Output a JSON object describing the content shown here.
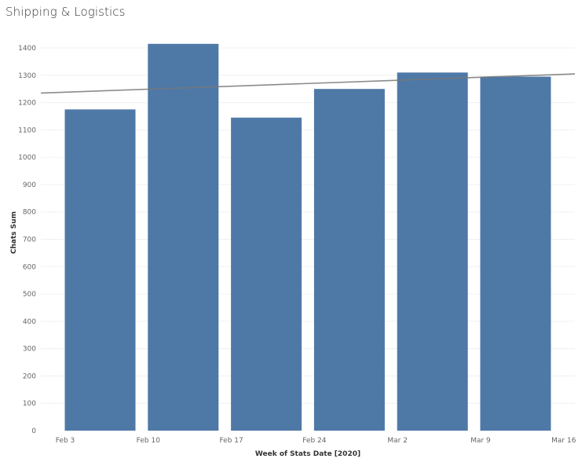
{
  "chart_data": {
    "type": "bar",
    "title": "Shipping & Logistics",
    "xlabel": "Week of Stats Date [2020]",
    "ylabel": "Chats Sum",
    "categories": [
      "Feb 3",
      "Feb 10",
      "Feb 17",
      "Feb 24",
      "Mar 2",
      "Mar 9"
    ],
    "x_tick_labels": [
      "Feb 3",
      "Feb 10",
      "Feb 17",
      "Feb 24",
      "Mar 2",
      "Mar 9",
      "Mar 16"
    ],
    "values": [
      1175,
      1415,
      1145,
      1250,
      1310,
      1295
    ],
    "ylim": [
      0,
      1400
    ],
    "y_ticks": [
      0,
      100,
      200,
      300,
      400,
      500,
      600,
      700,
      800,
      900,
      1000,
      1100,
      1200,
      1300,
      1400
    ],
    "trend_line": {
      "start": 1235,
      "end": 1305
    },
    "grid": true,
    "bar_color": "#4e79a7",
    "trend_color": "#777777"
  }
}
